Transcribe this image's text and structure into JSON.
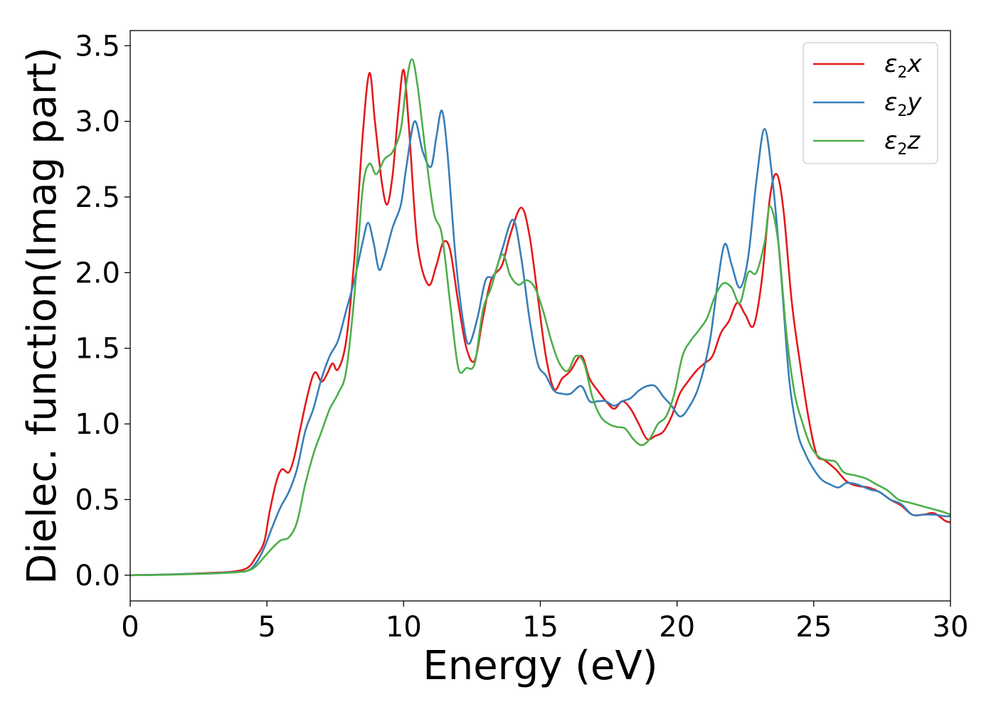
{
  "chart_data": {
    "type": "line",
    "title": "",
    "xlabel": "Energy (eV)",
    "ylabel": "Dielec. function(Imag part)",
    "xlim": [
      0,
      30
    ],
    "ylim": [
      -0.17,
      3.6
    ],
    "xticks": [
      0,
      5,
      10,
      15,
      20,
      25,
      30
    ],
    "xtick_labels": [
      "0",
      "5",
      "10",
      "15",
      "20",
      "25",
      "30"
    ],
    "yticks": [
      0.0,
      0.5,
      1.0,
      1.5,
      2.0,
      2.5,
      3.0,
      3.5
    ],
    "ytick_labels": [
      "0.0",
      "0.5",
      "1.0",
      "1.5",
      "2.0",
      "2.5",
      "3.0",
      "3.5"
    ],
    "grid": false,
    "legend_position": "top-right",
    "series": [
      {
        "name": "ε2x",
        "base": "ε",
        "sub": "2",
        "suffix": "x",
        "color": "#e41a1c",
        "points": [
          [
            0,
            0
          ],
          [
            1,
            0.003
          ],
          [
            2,
            0.008
          ],
          [
            3,
            0.015
          ],
          [
            3.8,
            0.025
          ],
          [
            4.3,
            0.05
          ],
          [
            4.6,
            0.12
          ],
          [
            4.9,
            0.22
          ],
          [
            5.1,
            0.42
          ],
          [
            5.35,
            0.62
          ],
          [
            5.55,
            0.7
          ],
          [
            5.8,
            0.68
          ],
          [
            6.0,
            0.78
          ],
          [
            6.2,
            0.95
          ],
          [
            6.5,
            1.2
          ],
          [
            6.75,
            1.34
          ],
          [
            7.0,
            1.28
          ],
          [
            7.2,
            1.33
          ],
          [
            7.4,
            1.4
          ],
          [
            7.6,
            1.36
          ],
          [
            7.9,
            1.55
          ],
          [
            8.2,
            2.1
          ],
          [
            8.5,
            2.9
          ],
          [
            8.75,
            3.32
          ],
          [
            8.95,
            3.0
          ],
          [
            9.2,
            2.6
          ],
          [
            9.4,
            2.45
          ],
          [
            9.6,
            2.65
          ],
          [
            9.8,
            3.05
          ],
          [
            10.0,
            3.34
          ],
          [
            10.2,
            2.95
          ],
          [
            10.5,
            2.2
          ],
          [
            10.9,
            1.92
          ],
          [
            11.2,
            2.05
          ],
          [
            11.45,
            2.2
          ],
          [
            11.7,
            2.15
          ],
          [
            12.0,
            1.8
          ],
          [
            12.3,
            1.5
          ],
          [
            12.6,
            1.42
          ],
          [
            12.9,
            1.7
          ],
          [
            13.2,
            1.95
          ],
          [
            13.6,
            2.05
          ],
          [
            13.9,
            2.25
          ],
          [
            14.3,
            2.43
          ],
          [
            14.6,
            2.25
          ],
          [
            14.9,
            1.85
          ],
          [
            15.2,
            1.45
          ],
          [
            15.5,
            1.23
          ],
          [
            15.8,
            1.3
          ],
          [
            16.1,
            1.35
          ],
          [
            16.5,
            1.45
          ],
          [
            16.8,
            1.3
          ],
          [
            17.1,
            1.22
          ],
          [
            17.4,
            1.15
          ],
          [
            17.7,
            1.1
          ],
          [
            18.0,
            1.15
          ],
          [
            18.3,
            1.1
          ],
          [
            18.6,
            1.0
          ],
          [
            18.9,
            0.9
          ],
          [
            19.2,
            0.92
          ],
          [
            19.5,
            0.95
          ],
          [
            19.8,
            1.05
          ],
          [
            20.1,
            1.2
          ],
          [
            20.4,
            1.28
          ],
          [
            20.7,
            1.35
          ],
          [
            21.0,
            1.4
          ],
          [
            21.3,
            1.45
          ],
          [
            21.6,
            1.6
          ],
          [
            21.9,
            1.68
          ],
          [
            22.2,
            1.8
          ],
          [
            22.5,
            1.72
          ],
          [
            22.8,
            1.65
          ],
          [
            23.1,
            1.95
          ],
          [
            23.4,
            2.5
          ],
          [
            23.65,
            2.65
          ],
          [
            23.9,
            2.4
          ],
          [
            24.2,
            1.8
          ],
          [
            24.5,
            1.4
          ],
          [
            24.8,
            1.05
          ],
          [
            25.1,
            0.8
          ],
          [
            25.4,
            0.76
          ],
          [
            25.8,
            0.7
          ],
          [
            26.2,
            0.62
          ],
          [
            26.6,
            0.59
          ],
          [
            27.0,
            0.58
          ],
          [
            27.4,
            0.55
          ],
          [
            27.8,
            0.5
          ],
          [
            28.2,
            0.46
          ],
          [
            28.6,
            0.4
          ],
          [
            29.0,
            0.4
          ],
          [
            29.4,
            0.41
          ],
          [
            29.8,
            0.36
          ],
          [
            30,
            0.35
          ]
        ]
      },
      {
        "name": "ε2y",
        "base": "ε",
        "sub": "2",
        "suffix": "y",
        "color": "#377eb8",
        "points": [
          [
            0,
            0
          ],
          [
            1,
            0.003
          ],
          [
            2,
            0.008
          ],
          [
            3,
            0.012
          ],
          [
            3.8,
            0.02
          ],
          [
            4.3,
            0.03
          ],
          [
            4.6,
            0.08
          ],
          [
            4.9,
            0.18
          ],
          [
            5.2,
            0.32
          ],
          [
            5.5,
            0.45
          ],
          [
            5.8,
            0.55
          ],
          [
            6.1,
            0.7
          ],
          [
            6.4,
            0.95
          ],
          [
            6.7,
            1.1
          ],
          [
            7.0,
            1.3
          ],
          [
            7.3,
            1.45
          ],
          [
            7.6,
            1.55
          ],
          [
            7.9,
            1.75
          ],
          [
            8.2,
            1.95
          ],
          [
            8.5,
            2.2
          ],
          [
            8.7,
            2.33
          ],
          [
            8.9,
            2.2
          ],
          [
            9.1,
            2.02
          ],
          [
            9.3,
            2.1
          ],
          [
            9.6,
            2.3
          ],
          [
            9.9,
            2.45
          ],
          [
            10.1,
            2.7
          ],
          [
            10.4,
            3.0
          ],
          [
            10.7,
            2.8
          ],
          [
            11.0,
            2.7
          ],
          [
            11.2,
            2.9
          ],
          [
            11.4,
            3.07
          ],
          [
            11.6,
            2.8
          ],
          [
            11.9,
            2.1
          ],
          [
            12.2,
            1.65
          ],
          [
            12.4,
            1.53
          ],
          [
            12.7,
            1.7
          ],
          [
            13.0,
            1.95
          ],
          [
            13.3,
            1.98
          ],
          [
            13.6,
            2.15
          ],
          [
            14.0,
            2.35
          ],
          [
            14.3,
            2.1
          ],
          [
            14.6,
            1.7
          ],
          [
            14.9,
            1.4
          ],
          [
            15.2,
            1.32
          ],
          [
            15.5,
            1.22
          ],
          [
            15.8,
            1.2
          ],
          [
            16.1,
            1.2
          ],
          [
            16.5,
            1.25
          ],
          [
            16.8,
            1.15
          ],
          [
            17.1,
            1.15
          ],
          [
            17.4,
            1.15
          ],
          [
            17.7,
            1.12
          ],
          [
            18.0,
            1.15
          ],
          [
            18.3,
            1.17
          ],
          [
            18.6,
            1.22
          ],
          [
            18.9,
            1.25
          ],
          [
            19.2,
            1.25
          ],
          [
            19.5,
            1.18
          ],
          [
            19.8,
            1.12
          ],
          [
            20.1,
            1.05
          ],
          [
            20.4,
            1.1
          ],
          [
            20.8,
            1.25
          ],
          [
            21.2,
            1.55
          ],
          [
            21.5,
            1.95
          ],
          [
            21.75,
            2.19
          ],
          [
            22.0,
            2.05
          ],
          [
            22.3,
            1.9
          ],
          [
            22.6,
            2.1
          ],
          [
            22.9,
            2.6
          ],
          [
            23.2,
            2.95
          ],
          [
            23.5,
            2.6
          ],
          [
            23.8,
            2.0
          ],
          [
            24.1,
            1.3
          ],
          [
            24.4,
            0.95
          ],
          [
            24.7,
            0.8
          ],
          [
            25.0,
            0.7
          ],
          [
            25.3,
            0.63
          ],
          [
            25.6,
            0.6
          ],
          [
            25.9,
            0.58
          ],
          [
            26.2,
            0.61
          ],
          [
            26.6,
            0.6
          ],
          [
            27.0,
            0.57
          ],
          [
            27.4,
            0.55
          ],
          [
            27.8,
            0.5
          ],
          [
            28.2,
            0.47
          ],
          [
            28.6,
            0.4
          ],
          [
            29.0,
            0.4
          ],
          [
            29.4,
            0.4
          ],
          [
            29.8,
            0.39
          ],
          [
            30,
            0.39
          ]
        ]
      },
      {
        "name": "ε2z",
        "base": "ε",
        "sub": "2",
        "suffix": "z",
        "color": "#4daf4a",
        "points": [
          [
            0,
            0
          ],
          [
            1,
            0.002
          ],
          [
            2,
            0.006
          ],
          [
            3,
            0.012
          ],
          [
            3.8,
            0.018
          ],
          [
            4.3,
            0.03
          ],
          [
            4.6,
            0.06
          ],
          [
            4.9,
            0.12
          ],
          [
            5.2,
            0.18
          ],
          [
            5.5,
            0.23
          ],
          [
            5.8,
            0.25
          ],
          [
            6.1,
            0.35
          ],
          [
            6.4,
            0.6
          ],
          [
            6.7,
            0.8
          ],
          [
            7.0,
            0.95
          ],
          [
            7.3,
            1.1
          ],
          [
            7.6,
            1.2
          ],
          [
            7.9,
            1.35
          ],
          [
            8.2,
            1.85
          ],
          [
            8.5,
            2.55
          ],
          [
            8.75,
            2.72
          ],
          [
            9.0,
            2.65
          ],
          [
            9.3,
            2.75
          ],
          [
            9.6,
            2.8
          ],
          [
            9.9,
            2.95
          ],
          [
            10.1,
            3.25
          ],
          [
            10.3,
            3.41
          ],
          [
            10.5,
            3.25
          ],
          [
            10.8,
            2.8
          ],
          [
            11.1,
            2.4
          ],
          [
            11.4,
            2.25
          ],
          [
            11.7,
            1.8
          ],
          [
            12.0,
            1.37
          ],
          [
            12.3,
            1.37
          ],
          [
            12.6,
            1.4
          ],
          [
            12.9,
            1.75
          ],
          [
            13.2,
            1.9
          ],
          [
            13.6,
            2.12
          ],
          [
            13.9,
            1.98
          ],
          [
            14.2,
            1.92
          ],
          [
            14.5,
            1.95
          ],
          [
            14.8,
            1.9
          ],
          [
            15.1,
            1.75
          ],
          [
            15.4,
            1.55
          ],
          [
            15.7,
            1.4
          ],
          [
            16.0,
            1.35
          ],
          [
            16.3,
            1.45
          ],
          [
            16.6,
            1.4
          ],
          [
            16.9,
            1.18
          ],
          [
            17.2,
            1.05
          ],
          [
            17.5,
            1.0
          ],
          [
            17.8,
            0.98
          ],
          [
            18.1,
            0.97
          ],
          [
            18.4,
            0.9
          ],
          [
            18.7,
            0.86
          ],
          [
            19.0,
            0.9
          ],
          [
            19.3,
            1.0
          ],
          [
            19.6,
            1.05
          ],
          [
            19.9,
            1.2
          ],
          [
            20.2,
            1.45
          ],
          [
            20.5,
            1.55
          ],
          [
            20.8,
            1.62
          ],
          [
            21.1,
            1.7
          ],
          [
            21.4,
            1.85
          ],
          [
            21.7,
            1.93
          ],
          [
            22.0,
            1.9
          ],
          [
            22.3,
            1.8
          ],
          [
            22.6,
            2.0
          ],
          [
            22.9,
            2.0
          ],
          [
            23.2,
            2.2
          ],
          [
            23.4,
            2.44
          ],
          [
            23.7,
            2.2
          ],
          [
            24.0,
            1.6
          ],
          [
            24.3,
            1.2
          ],
          [
            24.6,
            1.0
          ],
          [
            24.9,
            0.85
          ],
          [
            25.2,
            0.78
          ],
          [
            25.5,
            0.76
          ],
          [
            25.8,
            0.75
          ],
          [
            26.1,
            0.68
          ],
          [
            26.5,
            0.66
          ],
          [
            26.9,
            0.64
          ],
          [
            27.3,
            0.6
          ],
          [
            27.7,
            0.56
          ],
          [
            28.1,
            0.5
          ],
          [
            28.5,
            0.48
          ],
          [
            28.9,
            0.46
          ],
          [
            29.3,
            0.44
          ],
          [
            29.7,
            0.42
          ],
          [
            30,
            0.4
          ]
        ]
      }
    ]
  }
}
